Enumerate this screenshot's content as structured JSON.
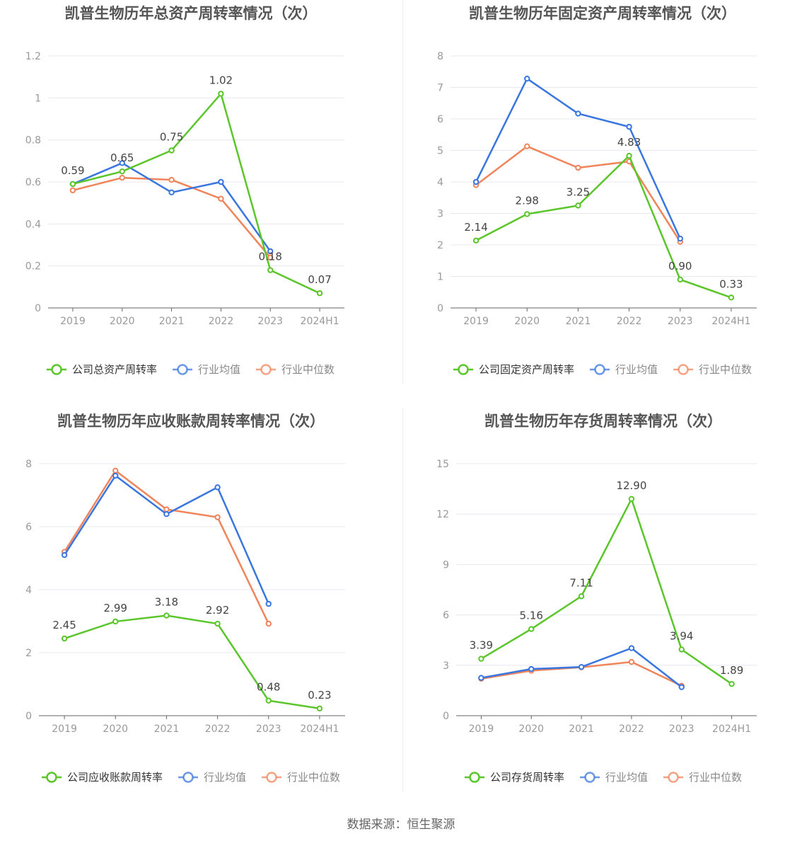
{
  "source": "数据来源：恒生聚源",
  "colors": {
    "company": "#5ac629",
    "mean": "#3a76e0",
    "median": "#f0845b",
    "grid": "#e6e8ef",
    "axis": "#666666",
    "tick": "#999999",
    "title": "#555555"
  },
  "chart_data": [
    {
      "type": "line",
      "title": "凯普生物历年总资产周转率情况（次）",
      "categories": [
        "2019",
        "2020",
        "2021",
        "2022",
        "2023",
        "2024H1"
      ],
      "ylim": [
        0,
        1.2
      ],
      "yticks": [
        0,
        0.2,
        0.4,
        0.6,
        0.8,
        1,
        1.2
      ],
      "ytick_labels": [
        "0",
        "0.2",
        "0.4",
        "0.6",
        "0.8",
        "1",
        "1.2"
      ],
      "series": [
        {
          "name": "公司总资产周转率",
          "color_key": "company",
          "values": [
            0.59,
            0.65,
            0.75,
            1.02,
            0.18,
            0.07
          ],
          "labels": [
            "0.59",
            "0.65",
            "0.75",
            "1.02",
            "0.18",
            "0.07"
          ]
        },
        {
          "name": "行业均值",
          "color_key": "mean",
          "values": [
            0.59,
            0.69,
            0.55,
            0.6,
            0.27,
            null
          ]
        },
        {
          "name": "行业中位数",
          "color_key": "median",
          "values": [
            0.56,
            0.62,
            0.61,
            0.52,
            0.24,
            null
          ]
        }
      ]
    },
    {
      "type": "line",
      "title": "凯普生物历年固定资产周转率情况（次）",
      "categories": [
        "2019",
        "2020",
        "2021",
        "2022",
        "2023",
        "2024H1"
      ],
      "ylim": [
        0,
        8
      ],
      "yticks": [
        0,
        1,
        2,
        3,
        4,
        5,
        6,
        7,
        8
      ],
      "ytick_labels": [
        "0",
        "1",
        "2",
        "3",
        "4",
        "5",
        "6",
        "7",
        "8"
      ],
      "series": [
        {
          "name": "公司固定资产周转率",
          "color_key": "company",
          "values": [
            2.14,
            2.98,
            3.25,
            4.83,
            0.9,
            0.33
          ],
          "labels": [
            "2.14",
            "2.98",
            "3.25",
            "4.83",
            "0.90",
            "0.33"
          ]
        },
        {
          "name": "行业均值",
          "color_key": "mean",
          "values": [
            4.0,
            7.28,
            6.17,
            5.75,
            2.2,
            null
          ]
        },
        {
          "name": "行业中位数",
          "color_key": "median",
          "values": [
            3.9,
            5.13,
            4.45,
            4.65,
            2.1,
            null
          ]
        }
      ]
    },
    {
      "type": "line",
      "title": "凯普生物历年应收账款周转率情况（次）",
      "categories": [
        "2019",
        "2020",
        "2021",
        "2022",
        "2023",
        "2024H1"
      ],
      "ylim": [
        0,
        8
      ],
      "yticks": [
        0,
        2,
        4,
        6,
        8
      ],
      "ytick_labels": [
        "0",
        "2",
        "4",
        "6",
        "8"
      ],
      "series": [
        {
          "name": "公司应收账款周转率",
          "color_key": "company",
          "values": [
            2.45,
            2.99,
            3.18,
            2.92,
            0.48,
            0.23
          ],
          "labels": [
            "2.45",
            "2.99",
            "3.18",
            "2.92",
            "0.48",
            "0.23"
          ]
        },
        {
          "name": "行业均值",
          "color_key": "mean",
          "values": [
            5.1,
            7.62,
            6.4,
            7.25,
            3.55,
            null
          ]
        },
        {
          "name": "行业中位数",
          "color_key": "median",
          "values": [
            5.2,
            7.78,
            6.55,
            6.3,
            2.92,
            null
          ]
        }
      ]
    },
    {
      "type": "line",
      "title": "凯普生物历年存货周转率情况（次）",
      "categories": [
        "2019",
        "2020",
        "2021",
        "2022",
        "2023",
        "2024H1"
      ],
      "ylim": [
        0,
        15
      ],
      "yticks": [
        0,
        3,
        6,
        9,
        12,
        15
      ],
      "ytick_labels": [
        "0",
        "3",
        "6",
        "9",
        "12",
        "15"
      ],
      "series": [
        {
          "name": "公司存货周转率",
          "color_key": "company",
          "values": [
            3.39,
            5.16,
            7.11,
            12.9,
            3.94,
            1.89
          ],
          "labels": [
            "3.39",
            "5.16",
            "7.11",
            "12.90",
            "3.94",
            "1.89"
          ]
        },
        {
          "name": "行业均值",
          "color_key": "mean",
          "values": [
            2.25,
            2.78,
            2.9,
            4.02,
            1.7,
            null
          ]
        },
        {
          "name": "行业中位数",
          "color_key": "median",
          "values": [
            2.2,
            2.68,
            2.88,
            3.2,
            1.78,
            null
          ]
        }
      ]
    }
  ]
}
